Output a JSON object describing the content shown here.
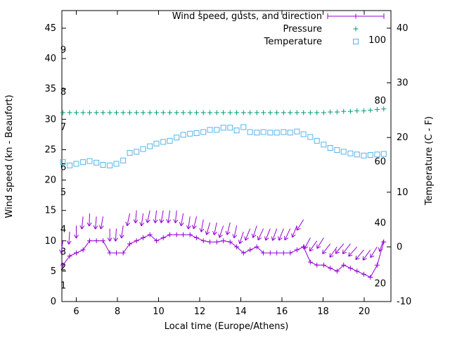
{
  "legend": {
    "items": [
      {
        "label": "Wind speed, gusts, and direction",
        "series": "wind"
      },
      {
        "label": "Pressure",
        "series": "pressure"
      },
      {
        "label": "Temperature",
        "series": "temperature"
      }
    ]
  },
  "colors": {
    "wind": "#9400d3",
    "pressure": "#009e73",
    "temperature": "#56b4e9",
    "axis": "#000000",
    "background": "#ffffff"
  },
  "axes": {
    "x": {
      "label": "Local time (Europe/Athens)",
      "ticks": [
        6,
        8,
        10,
        12,
        14,
        16,
        18,
        20
      ],
      "range": [
        5.3,
        21.3
      ]
    },
    "y_left": {
      "label": "Wind speed (kn - Beaufort)",
      "ticks": [
        0,
        5,
        10,
        15,
        20,
        25,
        30,
        35,
        40,
        45
      ],
      "range": [
        0,
        47.9
      ],
      "beaufort_labels": [
        {
          "n": "1",
          "kn": 2.6
        },
        {
          "n": "2",
          "kn": 5.6
        },
        {
          "n": "3",
          "kn": 8.2
        },
        {
          "n": "4",
          "kn": 11.9
        },
        {
          "n": "5",
          "kn": 18.0
        },
        {
          "n": "6",
          "kn": 22.1
        },
        {
          "n": "7",
          "kn": 28.7
        },
        {
          "n": "8",
          "kn": 34.5
        },
        {
          "n": "9",
          "kn": 41.4
        }
      ]
    },
    "y_right": {
      "label": "Temperature (C - F)",
      "ticks": [
        -10,
        0,
        10,
        20,
        30,
        40
      ],
      "range": [
        -10,
        43.2
      ],
      "fahrenheit_labels": [
        {
          "f": "20",
          "c": -6.7
        },
        {
          "f": "40",
          "c": 4.4
        },
        {
          "f": "60",
          "c": 15.6
        },
        {
          "f": "80",
          "c": 26.7
        },
        {
          "f": "100",
          "c": 37.8
        }
      ]
    }
  },
  "chart_data": {
    "type": "line",
    "title": "",
    "xlabel": "Local time (Europe/Athens)",
    "ylabel_left": "Wind speed (kn - Beaufort)",
    "ylabel_right": "Temperature (C - F)",
    "x_range": [
      5.3,
      21.3
    ],
    "y_left_range": [
      0,
      47.9
    ],
    "y_right_range": [
      -10,
      43.2
    ],
    "grid": false,
    "legend_position": "top-right-inside",
    "x": [
      5.35,
      5.68,
      6.0,
      6.33,
      6.65,
      6.98,
      7.3,
      7.63,
      7.95,
      8.28,
      8.6,
      8.93,
      9.25,
      9.58,
      9.9,
      10.23,
      10.55,
      10.88,
      11.2,
      11.53,
      11.85,
      12.18,
      12.5,
      12.83,
      13.15,
      13.48,
      13.8,
      14.13,
      14.45,
      14.78,
      15.1,
      15.43,
      15.75,
      16.08,
      16.4,
      16.73,
      17.05,
      17.38,
      17.7,
      18.03,
      18.35,
      18.68,
      19.0,
      19.33,
      19.65,
      19.98,
      20.3,
      20.63,
      20.95
    ],
    "series": [
      {
        "name": "Wind speed (kn)",
        "axis": "left",
        "style": "line+plus",
        "values": [
          6,
          7.5,
          8,
          8.5,
          10,
          10,
          10,
          8,
          8,
          8,
          9.5,
          10,
          10.5,
          11,
          10,
          10.5,
          11,
          11,
          11,
          11,
          10.5,
          10,
          9.8,
          9.8,
          10,
          9.8,
          9,
          8,
          8.5,
          9,
          8,
          8,
          8,
          8,
          8,
          8.5,
          9,
          6.5,
          6,
          6,
          5.5,
          5,
          6,
          5.5,
          5,
          4.5,
          4,
          6,
          9.8
        ]
      },
      {
        "name": "Gusts with direction (kn)",
        "axis": "left",
        "style": "arrows-down",
        "values": [
          10,
          11.5,
          12.5,
          14,
          14.5,
          14,
          14,
          12,
          12,
          12.5,
          14.5,
          15,
          14.5,
          15,
          15,
          15,
          15,
          15,
          14.5,
          14,
          14,
          13.5,
          13,
          13,
          12.5,
          13,
          12.5,
          11.5,
          12,
          12.5,
          12,
          12,
          12,
          12,
          12,
          12.5,
          13.5,
          10.5,
          10,
          10.5,
          9.5,
          9,
          9.5,
          9.5,
          9,
          8.5,
          8.5,
          9,
          10.2
        ],
        "arrow_angles_deg": [
          8,
          4,
          0,
          6,
          2,
          5,
          10,
          0,
          4,
          8,
          12,
          5,
          8,
          12,
          6,
          10,
          8,
          6,
          10,
          8,
          14,
          10,
          16,
          12,
          18,
          14,
          12,
          18,
          22,
          18,
          25,
          22,
          20,
          22,
          25,
          22,
          32,
          28,
          35,
          32,
          38,
          35,
          40,
          38,
          42,
          40,
          36,
          32,
          20
        ]
      },
      {
        "name": "Pressure (plotted on left axis scale)",
        "axis": "left",
        "style": "plus",
        "values": [
          31.1,
          31.1,
          31.1,
          31.1,
          31.1,
          31.1,
          31.1,
          31.1,
          31.1,
          31.1,
          31.1,
          31.1,
          31.1,
          31.1,
          31.1,
          31.1,
          31.1,
          31.1,
          31.1,
          31.1,
          31.1,
          31.1,
          31.1,
          31.1,
          31.1,
          31.1,
          31.1,
          31.1,
          31.1,
          31.1,
          31.1,
          31.1,
          31.1,
          31.1,
          31.1,
          31.1,
          31.1,
          31.1,
          31.1,
          31.1,
          31.2,
          31.2,
          31.3,
          31.3,
          31.4,
          31.4,
          31.5,
          31.6,
          31.7
        ]
      },
      {
        "name": "Temperature (C)",
        "axis": "right",
        "style": "square",
        "values": [
          15.5,
          14.9,
          15.2,
          15.5,
          15.7,
          15.4,
          15.0,
          14.9,
          15.2,
          15.8,
          17.2,
          17.4,
          17.9,
          18.4,
          18.9,
          19.2,
          19.4,
          20.0,
          20.5,
          20.7,
          20.8,
          21.0,
          21.4,
          21.4,
          21.8,
          21.8,
          21.3,
          21.9,
          21.0,
          20.9,
          21.0,
          20.9,
          20.9,
          21.0,
          20.9,
          21.1,
          20.6,
          20.1,
          19.4,
          18.7,
          18.1,
          17.7,
          17.4,
          17.1,
          16.9,
          16.7,
          16.8,
          16.9,
          17.0
        ]
      }
    ]
  }
}
